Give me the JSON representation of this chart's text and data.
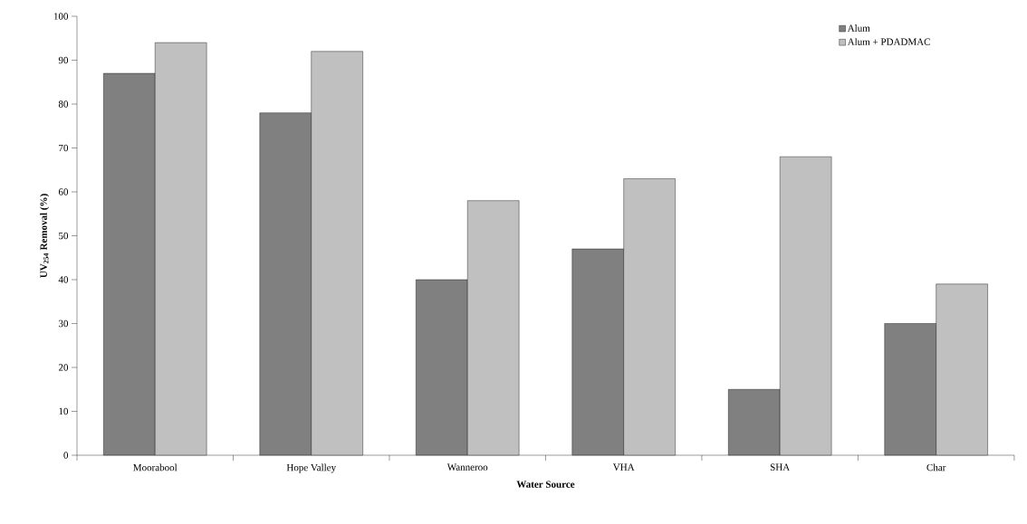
{
  "chart_data": {
    "type": "bar",
    "xlabel": "Water Source",
    "ylabel": "UV$_{254}$ Removal (%)",
    "categories": [
      "Moorabool",
      "Hope Valley",
      "Wanneroo",
      "VHA",
      "SHA",
      "Char"
    ],
    "series": [
      {
        "name": "Alum",
        "color": "#808080",
        "values": [
          87,
          78,
          40,
          47,
          15,
          30
        ]
      },
      {
        "name": "Alum + PDADMAC",
        "color": "#c0c0c0",
        "values": [
          94,
          92,
          58,
          63,
          68,
          39
        ]
      }
    ],
    "ylim": [
      0,
      100
    ],
    "yticks": [
      0,
      10,
      20,
      30,
      40,
      50,
      60,
      70,
      80,
      90,
      100
    ],
    "legend": "top right"
  }
}
